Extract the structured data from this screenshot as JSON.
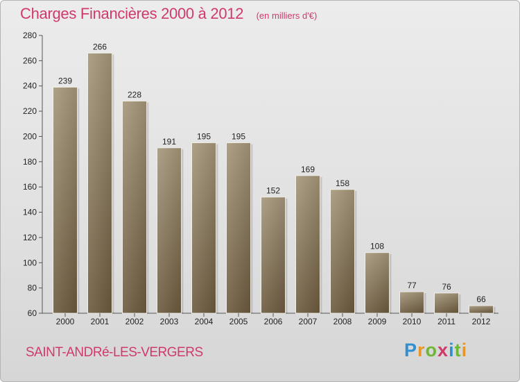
{
  "header": {
    "title": "Charges Financières 2000 à 2012",
    "subtitle": "(en milliers d'€)"
  },
  "footer": {
    "city": "SAINT-ANDRé-LES-VERGERS",
    "brand": "Proxiti"
  },
  "colors": {
    "accent": "#d03a6a",
    "bar_top": "#a6977a",
    "bar_bottom": "#6b5a3e"
  },
  "chart_data": {
    "type": "bar",
    "title": "Charges Financières 2000 à 2012",
    "subtitle": "(en milliers d'€)",
    "categories": [
      "2000",
      "2001",
      "2002",
      "2003",
      "2004",
      "2005",
      "2006",
      "2007",
      "2008",
      "2009",
      "2010",
      "2011",
      "2012"
    ],
    "values": [
      239,
      266,
      228,
      191,
      195,
      195,
      152,
      169,
      158,
      108,
      77,
      76,
      66
    ],
    "ylim": [
      60,
      280
    ],
    "yticks": [
      60,
      80,
      100,
      120,
      140,
      160,
      180,
      200,
      220,
      240,
      260,
      280
    ],
    "grid": false,
    "data_labels": true
  }
}
